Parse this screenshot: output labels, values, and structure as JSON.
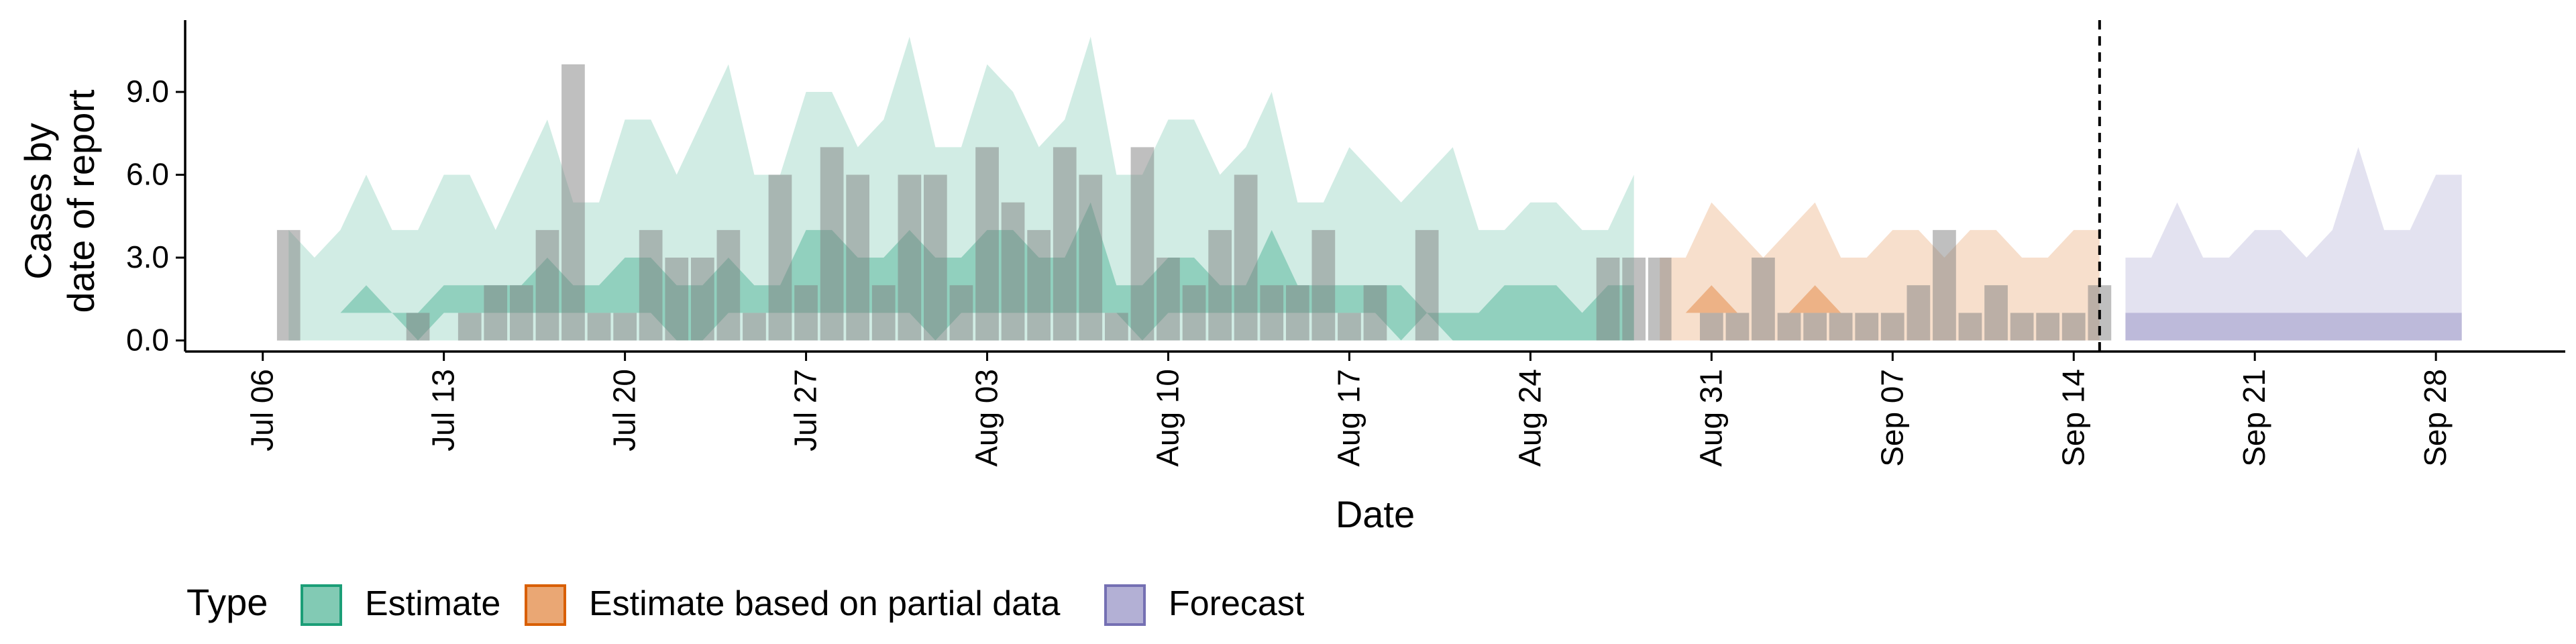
{
  "chart_data": {
    "type": "bar",
    "title": "",
    "xlabel": "Date",
    "ylabel_lines": [
      "Cases by",
      "date of report"
    ],
    "y_ticks": [
      0,
      3,
      6,
      9
    ],
    "y_tick_labels": [
      "0.0",
      "3.0",
      "6.0",
      "9.0"
    ],
    "ylim": [
      -0.4,
      11.6
    ],
    "x_ticks": [
      "2020-07-06",
      "2020-07-13",
      "2020-07-20",
      "2020-07-27",
      "2020-08-03",
      "2020-08-10",
      "2020-08-17",
      "2020-08-24",
      "2020-08-31",
      "2020-09-07",
      "2020-09-14",
      "2020-09-21",
      "2020-09-28"
    ],
    "x_tick_labels": [
      "Jul 06",
      "Jul 13",
      "Jul 20",
      "Jul 27",
      "Aug 03",
      "Aug 10",
      "Aug 17",
      "Aug 24",
      "Aug 31",
      "Sep 07",
      "Sep 14",
      "Sep 21",
      "Sep 28"
    ],
    "xlim": [
      "2020-07-03",
      "2020-10-03"
    ],
    "forecast_date": "2020-09-15",
    "reported_cases": {
      "dates": [
        "2020-07-07",
        "2020-07-08",
        "2020-07-09",
        "2020-07-10",
        "2020-07-11",
        "2020-07-12",
        "2020-07-13",
        "2020-07-14",
        "2020-07-15",
        "2020-07-16",
        "2020-07-17",
        "2020-07-18",
        "2020-07-19",
        "2020-07-20",
        "2020-07-21",
        "2020-07-22",
        "2020-07-23",
        "2020-07-24",
        "2020-07-25",
        "2020-07-26",
        "2020-07-27",
        "2020-07-28",
        "2020-07-29",
        "2020-07-30",
        "2020-07-31",
        "2020-08-01",
        "2020-08-02",
        "2020-08-03",
        "2020-08-04",
        "2020-08-05",
        "2020-08-06",
        "2020-08-07",
        "2020-08-08",
        "2020-08-09",
        "2020-08-10",
        "2020-08-11",
        "2020-08-12",
        "2020-08-13",
        "2020-08-14",
        "2020-08-15",
        "2020-08-16",
        "2020-08-17",
        "2020-08-18",
        "2020-08-19",
        "2020-08-20",
        "2020-08-21",
        "2020-08-22",
        "2020-08-23",
        "2020-08-24",
        "2020-08-25",
        "2020-08-26",
        "2020-08-27",
        "2020-08-28",
        "2020-08-29",
        "2020-08-30",
        "2020-08-31",
        "2020-09-01",
        "2020-09-02",
        "2020-09-03",
        "2020-09-04",
        "2020-09-05",
        "2020-09-06",
        "2020-09-07",
        "2020-09-08",
        "2020-09-09",
        "2020-09-10",
        "2020-09-11",
        "2020-09-12",
        "2020-09-13",
        "2020-09-14",
        "2020-09-15"
      ],
      "values": [
        4,
        0,
        0,
        0,
        0,
        1,
        0,
        1,
        2,
        2,
        4,
        10,
        1,
        1,
        4,
        3,
        3,
        4,
        1,
        6,
        2,
        7,
        6,
        2,
        6,
        6,
        2,
        7,
        5,
        4,
        7,
        6,
        1,
        7,
        3,
        2,
        4,
        6,
        2,
        2,
        4,
        1,
        2,
        0,
        4,
        0,
        0,
        0,
        0,
        0,
        0,
        3,
        3,
        3,
        0,
        1,
        1,
        3,
        1,
        1,
        1,
        1,
        1,
        2,
        4,
        1,
        2,
        1,
        1,
        1,
        2
      ]
    },
    "series": [
      {
        "name": "Estimate",
        "color": "#1B9E77",
        "dates": [
          "2020-07-07",
          "2020-07-08",
          "2020-07-09",
          "2020-07-10",
          "2020-07-11",
          "2020-07-12",
          "2020-07-13",
          "2020-07-14",
          "2020-07-15",
          "2020-07-16",
          "2020-07-17",
          "2020-07-18",
          "2020-07-19",
          "2020-07-20",
          "2020-07-21",
          "2020-07-22",
          "2020-07-23",
          "2020-07-24",
          "2020-07-25",
          "2020-07-26",
          "2020-07-27",
          "2020-07-28",
          "2020-07-29",
          "2020-07-30",
          "2020-07-31",
          "2020-08-01",
          "2020-08-02",
          "2020-08-03",
          "2020-08-04",
          "2020-08-05",
          "2020-08-06",
          "2020-08-07",
          "2020-08-08",
          "2020-08-09",
          "2020-08-10",
          "2020-08-11",
          "2020-08-12",
          "2020-08-13",
          "2020-08-14",
          "2020-08-15",
          "2020-08-16",
          "2020-08-17",
          "2020-08-18",
          "2020-08-19",
          "2020-08-20",
          "2020-08-21",
          "2020-08-22",
          "2020-08-23",
          "2020-08-24",
          "2020-08-25",
          "2020-08-26",
          "2020-08-27",
          "2020-08-28"
        ],
        "lower_90": [
          0,
          0,
          0,
          0,
          0,
          0,
          0,
          0,
          0,
          0,
          0,
          0,
          0,
          0,
          0,
          0,
          0,
          0,
          0,
          0,
          0,
          0,
          0,
          0,
          0,
          0,
          0,
          0,
          0,
          0,
          0,
          0,
          0,
          0,
          0,
          0,
          0,
          0,
          0,
          0,
          0,
          0,
          0,
          0,
          0,
          0,
          0,
          0,
          0,
          0,
          0,
          0,
          0
        ],
        "upper_90": [
          4,
          3,
          4,
          6,
          4,
          4,
          6,
          6,
          4,
          6,
          8,
          5,
          5,
          8,
          8,
          6,
          8,
          10,
          6,
          6,
          9,
          9,
          7,
          8,
          11,
          7,
          7,
          10,
          9,
          7,
          8,
          11,
          6,
          6,
          8,
          8,
          6,
          7,
          9,
          5,
          5,
          7,
          6,
          5,
          6,
          7,
          4,
          4,
          5,
          5,
          4,
          4,
          6
        ],
        "lower_50": [
          1,
          1,
          1,
          1,
          1,
          0,
          1,
          1,
          1,
          1,
          1,
          1,
          1,
          1,
          1,
          0,
          0,
          1,
          1,
          1,
          1,
          1,
          1,
          1,
          1,
          0,
          1,
          1,
          1,
          1,
          1,
          1,
          1,
          0,
          1,
          1,
          1,
          1,
          1,
          1,
          1,
          1,
          1,
          0,
          1,
          0,
          0,
          0,
          0,
          0,
          0,
          0,
          0
        ],
        "upper_50": [
          1,
          1,
          1,
          2,
          1,
          1,
          2,
          2,
          2,
          2,
          3,
          2,
          2,
          3,
          3,
          2,
          2,
          3,
          2,
          2,
          4,
          4,
          3,
          3,
          4,
          3,
          3,
          4,
          4,
          3,
          3,
          5,
          2,
          2,
          3,
          3,
          2,
          2,
          4,
          2,
          2,
          2,
          2,
          2,
          1,
          1,
          1,
          2,
          2,
          2,
          1,
          2,
          2
        ]
      },
      {
        "name": "Estimate based on partial data",
        "color": "#D95F02",
        "dates": [
          "2020-08-29",
          "2020-08-30",
          "2020-08-31",
          "2020-09-01",
          "2020-09-02",
          "2020-09-03",
          "2020-09-04",
          "2020-09-05",
          "2020-09-06",
          "2020-09-07",
          "2020-09-08",
          "2020-09-09",
          "2020-09-10",
          "2020-09-11",
          "2020-09-12",
          "2020-09-13",
          "2020-09-14",
          "2020-09-15"
        ],
        "lower_90": [
          0,
          0,
          0,
          0,
          0,
          0,
          0,
          0,
          0,
          0,
          0,
          0,
          0,
          0,
          0,
          0,
          0,
          0
        ],
        "upper_90": [
          3,
          3,
          5,
          4,
          3,
          4,
          5,
          3,
          3,
          4,
          4,
          3,
          4,
          4,
          3,
          3,
          4,
          4
        ],
        "lower_50": [
          1,
          1,
          1,
          1,
          1,
          1,
          1,
          1,
          1,
          1,
          1,
          1,
          1,
          1,
          1,
          1,
          1,
          1
        ],
        "upper_50": [
          1,
          1,
          2,
          1,
          1,
          1,
          2,
          1,
          1,
          1,
          1,
          1,
          1,
          1,
          1,
          1,
          1,
          1
        ]
      },
      {
        "name": "Forecast",
        "color": "#7570B3",
        "dates": [
          "2020-09-16",
          "2020-09-17",
          "2020-09-18",
          "2020-09-19",
          "2020-09-20",
          "2020-09-21",
          "2020-09-22",
          "2020-09-23",
          "2020-09-24",
          "2020-09-25",
          "2020-09-26",
          "2020-09-27",
          "2020-09-28",
          "2020-09-29"
        ],
        "lower_90": [
          0,
          0,
          0,
          0,
          0,
          0,
          0,
          0,
          0,
          0,
          0,
          0,
          0,
          0
        ],
        "upper_90": [
          3,
          3,
          5,
          3,
          3,
          4,
          4,
          3,
          4,
          7,
          4,
          4,
          6,
          6
        ],
        "lower_50": [
          0,
          0,
          0,
          0,
          0,
          0,
          0,
          0,
          0,
          0,
          0,
          0,
          0,
          0
        ],
        "upper_50": [
          1,
          1,
          1,
          1,
          1,
          1,
          1,
          1,
          1,
          1,
          1,
          1,
          1,
          1
        ]
      }
    ],
    "legend": {
      "title": "Type",
      "position": "bottom",
      "entries": [
        "Estimate",
        "Estimate based on partial data",
        "Forecast"
      ]
    },
    "grid": false
  }
}
